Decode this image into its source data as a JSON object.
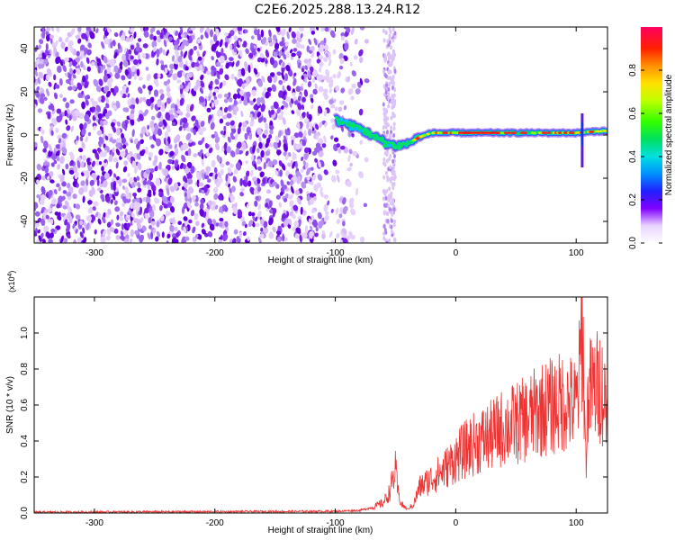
{
  "title": "C2E6.2025.288.13.24.R12",
  "chart_data": [
    {
      "type": "heatmap",
      "title": "C2E6.2025.288.13.24.R12",
      "xlabel": "Height of straight line (km)",
      "ylabel": "Frequency (Hz)",
      "xlim": [
        -350,
        126
      ],
      "ylim": [
        -50,
        50
      ],
      "xticks": [
        -300,
        -200,
        -100,
        0,
        100
      ],
      "xtick_labels": [
        "-300",
        "-200",
        "-100",
        "0",
        "100"
      ],
      "yticks": [
        -40,
        -20,
        0,
        20,
        40
      ],
      "ytick_labels": [
        "-40",
        "-20",
        "0",
        "20",
        "40"
      ],
      "colorbar": {
        "label": "Normalized spectral amplitude",
        "range": [
          0,
          1
        ],
        "ticks": [
          0.0,
          0.2,
          0.4,
          0.6,
          0.8
        ],
        "tick_labels": [
          "0.0",
          "0.2",
          "0.4",
          "0.6",
          "0.8"
        ],
        "colors": [
          "#ffffff",
          "#e0c8f8",
          "#a060f0",
          "#6000e0",
          "#2030ff",
          "#00c0ff",
          "#00e060",
          "#40ff00",
          "#ffff00",
          "#ff9000",
          "#ff0000",
          "#ff0080"
        ]
      },
      "features": {
        "noise_region_x": [
          -350,
          -90
        ],
        "noise_column_x": [
          -60,
          -50
        ],
        "signal_track": [
          {
            "x": -100,
            "y": 7
          },
          {
            "x": -90,
            "y": 5
          },
          {
            "x": -80,
            "y": 3
          },
          {
            "x": -70,
            "y": 0
          },
          {
            "x": -60,
            "y": -3
          },
          {
            "x": -50,
            "y": -5
          },
          {
            "x": -40,
            "y": -4
          },
          {
            "x": -30,
            "y": -1
          },
          {
            "x": -20,
            "y": 1
          },
          {
            "x": 0,
            "y": 1
          },
          {
            "x": 50,
            "y": 1
          },
          {
            "x": 100,
            "y": 1
          },
          {
            "x": 126,
            "y": 2
          }
        ],
        "spike": {
          "x": 105,
          "y_from": -15,
          "y_to": 10
        }
      }
    },
    {
      "type": "line",
      "xlabel": "Height of straight line (km)",
      "ylabel": "SNR (10 * v/v)",
      "y_scale_label": "(x10^4)",
      "xlim": [
        -350,
        126
      ],
      "ylim": [
        0,
        1.2
      ],
      "xticks": [
        -300,
        -200,
        -100,
        0,
        100
      ],
      "xtick_labels": [
        "-300",
        "-200",
        "-100",
        "0",
        "100"
      ],
      "yticks": [
        0.0,
        0.2,
        0.4,
        0.6,
        0.8,
        1.0
      ],
      "ytick_labels": [
        "0.0",
        "0.2",
        "0.4",
        "0.6",
        "0.8",
        "1.0"
      ],
      "line_color": "#ee3333",
      "series": [
        {
          "name": "SNR",
          "x": [
            -350,
            -300,
            -250,
            -200,
            -150,
            -100,
            -80,
            -70,
            -60,
            -55,
            -52,
            -50,
            -48,
            -45,
            -40,
            -35,
            -30,
            -20,
            -10,
            0,
            10,
            20,
            30,
            40,
            50,
            60,
            70,
            80,
            90,
            100,
            103,
            105,
            108,
            110,
            115,
            120,
            126
          ],
          "values": [
            0.005,
            0.006,
            0.007,
            0.008,
            0.009,
            0.01,
            0.015,
            0.03,
            0.06,
            0.12,
            0.2,
            0.25,
            0.12,
            0.05,
            0.02,
            0.05,
            0.15,
            0.2,
            0.25,
            0.32,
            0.38,
            0.42,
            0.45,
            0.5,
            0.52,
            0.55,
            0.6,
            0.62,
            0.65,
            0.62,
            0.8,
            1.15,
            0.3,
            0.7,
            0.72,
            0.75,
            0.6
          ]
        }
      ]
    }
  ]
}
